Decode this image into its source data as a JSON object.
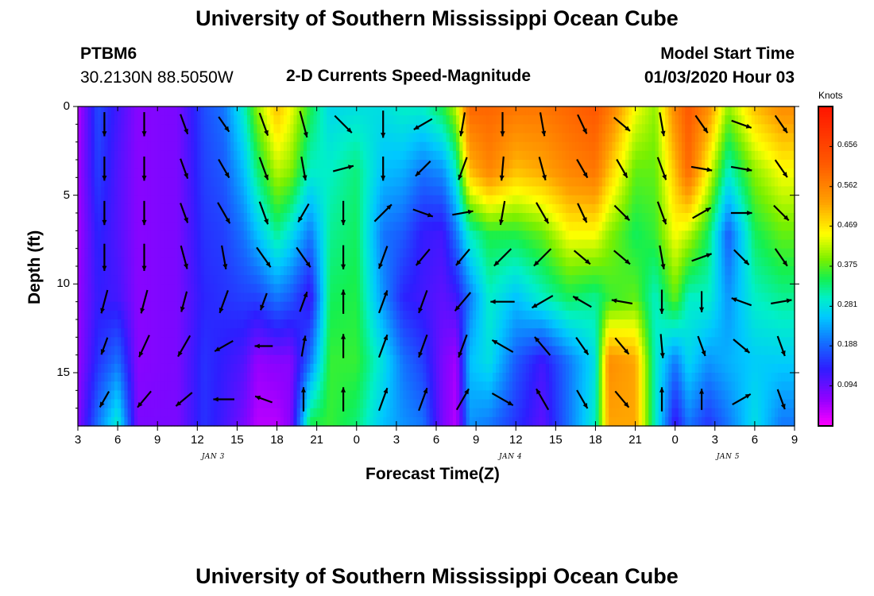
{
  "header": {
    "title": "University of Southern Mississippi Ocean Cube",
    "station_id": "PTBM6",
    "location": "30.2130N 88.5050W",
    "plot_title": "2-D Currents Speed-Magnitude",
    "model_start_label": "Model Start Time",
    "model_start_value": "01/03/2020 Hour 03"
  },
  "footer": {
    "title": "University of Southern Mississippi Ocean Cube"
  },
  "colorbar": {
    "unit_label": "Knots",
    "ticks": [
      "0.656",
      "0.562",
      "0.469",
      "0.375",
      "0.281",
      "0.188",
      "0.094"
    ],
    "tick_values": [
      0.656,
      0.562,
      0.469,
      0.375,
      0.281,
      0.188,
      0.094
    ],
    "range": [
      0.0,
      0.75
    ]
  },
  "chart_data": {
    "type": "heatmap",
    "title": "2-D Currents Speed-Magnitude",
    "xlabel": "Forecast Time(Z)",
    "ylabel": "Depth (ft)",
    "x_tick_labels": [
      "3",
      "6",
      "9",
      "12",
      "15",
      "18",
      "21",
      "0",
      "3",
      "6",
      "9",
      "12",
      "15",
      "18",
      "21",
      "0",
      "3",
      "6",
      "9"
    ],
    "x_range_hours": [
      0,
      54
    ],
    "date_labels": [
      {
        "text": "JAN 3",
        "hour": 10.2
      },
      {
        "text": "JAN 4",
        "hour": 32.6
      },
      {
        "text": "JAN 5",
        "hour": 49.0
      }
    ],
    "y_tick_labels": [
      "0",
      "5",
      "10",
      "15"
    ],
    "ylim": [
      0,
      18
    ],
    "y_inverted": true,
    "value_unit": "knots",
    "speed_keyframes_surface_to_bottom": [
      {
        "hour": 0,
        "profile": [
          0.04,
          0.05,
          0.05,
          0.06,
          0.06,
          0.07
        ]
      },
      {
        "hour": 1.5,
        "profile": [
          0.17,
          0.16,
          0.14,
          0.13,
          0.15,
          0.2
        ]
      },
      {
        "hour": 3,
        "profile": [
          0.12,
          0.11,
          0.11,
          0.12,
          0.2,
          0.3
        ]
      },
      {
        "hour": 4.5,
        "profile": [
          0.07,
          0.07,
          0.07,
          0.07,
          0.07,
          0.08
        ]
      },
      {
        "hour": 7.5,
        "profile": [
          0.08,
          0.08,
          0.08,
          0.08,
          0.08,
          0.08
        ]
      },
      {
        "hour": 9.5,
        "profile": [
          0.17,
          0.16,
          0.15,
          0.14,
          0.15,
          0.15
        ]
      },
      {
        "hour": 11,
        "profile": [
          0.2,
          0.18,
          0.16,
          0.15,
          0.13,
          0.12
        ]
      },
      {
        "hour": 12.5,
        "profile": [
          0.3,
          0.25,
          0.2,
          0.16,
          0.11,
          0.08
        ]
      },
      {
        "hour": 13.5,
        "profile": [
          0.4,
          0.33,
          0.25,
          0.16,
          0.06,
          0.04
        ]
      },
      {
        "hour": 15,
        "profile": [
          0.5,
          0.42,
          0.32,
          0.2,
          0.07,
          0.04
        ]
      },
      {
        "hour": 16,
        "profile": [
          0.45,
          0.4,
          0.28,
          0.18,
          0.07,
          0.07
        ]
      },
      {
        "hour": 17.5,
        "profile": [
          0.35,
          0.3,
          0.2,
          0.12,
          0.2,
          0.35
        ]
      },
      {
        "hour": 19,
        "profile": [
          0.27,
          0.3,
          0.32,
          0.34,
          0.36,
          0.36
        ]
      },
      {
        "hour": 21,
        "profile": [
          0.28,
          0.33,
          0.34,
          0.35,
          0.36,
          0.33
        ]
      },
      {
        "hour": 23,
        "profile": [
          0.28,
          0.25,
          0.2,
          0.22,
          0.28,
          0.25
        ]
      },
      {
        "hour": 24.5,
        "profile": [
          0.3,
          0.24,
          0.18,
          0.14,
          0.2,
          0.22
        ]
      },
      {
        "hour": 26,
        "profile": [
          0.3,
          0.2,
          0.13,
          0.12,
          0.16,
          0.2
        ]
      },
      {
        "hour": 27.5,
        "profile": [
          0.35,
          0.22,
          0.12,
          0.1,
          0.08,
          0.08
        ]
      },
      {
        "hour": 28.5,
        "profile": [
          0.42,
          0.3,
          0.2,
          0.12,
          0.05,
          0.04
        ]
      },
      {
        "hour": 29.5,
        "profile": [
          0.6,
          0.5,
          0.3,
          0.2,
          0.25,
          0.22
        ]
      },
      {
        "hour": 31,
        "profile": [
          0.6,
          0.56,
          0.35,
          0.3,
          0.28,
          0.2
        ]
      },
      {
        "hour": 33,
        "profile": [
          0.58,
          0.5,
          0.35,
          0.25,
          0.18,
          0.15
        ]
      },
      {
        "hour": 35,
        "profile": [
          0.58,
          0.52,
          0.38,
          0.3,
          0.12,
          0.1
        ]
      },
      {
        "hour": 37,
        "profile": [
          0.6,
          0.56,
          0.45,
          0.34,
          0.2,
          0.2
        ]
      },
      {
        "hour": 39,
        "profile": [
          0.62,
          0.58,
          0.45,
          0.32,
          0.28,
          0.3
        ]
      },
      {
        "hour": 40,
        "profile": [
          0.58,
          0.5,
          0.4,
          0.36,
          0.55,
          0.52
        ]
      },
      {
        "hour": 42,
        "profile": [
          0.45,
          0.38,
          0.34,
          0.38,
          0.52,
          0.52
        ]
      },
      {
        "hour": 43.5,
        "profile": [
          0.4,
          0.38,
          0.36,
          0.3,
          0.3,
          0.3
        ]
      },
      {
        "hour": 45,
        "profile": [
          0.56,
          0.5,
          0.45,
          0.38,
          0.2,
          0.12
        ]
      },
      {
        "hour": 46,
        "profile": [
          0.62,
          0.6,
          0.42,
          0.3,
          0.27,
          0.2
        ]
      },
      {
        "hour": 47.5,
        "profile": [
          0.55,
          0.45,
          0.34,
          0.3,
          0.22,
          0.15
        ]
      },
      {
        "hour": 49,
        "profile": [
          0.4,
          0.3,
          0.18,
          0.22,
          0.24,
          0.2
        ]
      },
      {
        "hour": 51,
        "profile": [
          0.5,
          0.4,
          0.34,
          0.3,
          0.26,
          0.28
        ]
      },
      {
        "hour": 53,
        "profile": [
          0.55,
          0.45,
          0.38,
          0.32,
          0.26,
          0.2
        ]
      },
      {
        "hour": 54,
        "profile": [
          0.55,
          0.45,
          0.38,
          0.32,
          0.26,
          0.2
        ]
      }
    ],
    "arrow_columns_hours": [
      3,
      6,
      9,
      12,
      15,
      18,
      21,
      24,
      27,
      30,
      33,
      36,
      39,
      42,
      45,
      48,
      51,
      54
    ],
    "arrow_depths_ft": [
      1,
      3.5,
      6,
      8.5,
      11,
      13.5,
      16.5
    ],
    "arrow_direction_deg_clockwise_from_north": [
      [
        180,
        180,
        180,
        180,
        195,
        200,
        210
      ],
      [
        180,
        180,
        180,
        180,
        195,
        205,
        220
      ],
      [
        160,
        160,
        160,
        165,
        195,
        210,
        230
      ],
      [
        145,
        150,
        150,
        170,
        200,
        240,
        270
      ],
      [
        160,
        160,
        160,
        145,
        200,
        270,
        290
      ],
      [
        165,
        170,
        210,
        145,
        20,
        10,
        0
      ],
      [
        135,
        75,
        180,
        180,
        0,
        0,
        0
      ],
      [
        180,
        180,
        45,
        200,
        20,
        20,
        20
      ],
      [
        240,
        225,
        110,
        220,
        200,
        200,
        20
      ],
      [
        190,
        200,
        80,
        220,
        220,
        200,
        30
      ],
      [
        180,
        185,
        190,
        225,
        270,
        300,
        120
      ],
      [
        170,
        165,
        150,
        225,
        240,
        320,
        330
      ],
      [
        155,
        150,
        155,
        130,
        300,
        145,
        150
      ],
      [
        130,
        150,
        135,
        130,
        280,
        140,
        140
      ],
      [
        170,
        160,
        160,
        170,
        180,
        175,
        0
      ],
      [
        145,
        100,
        60,
        70,
        180,
        160,
        0
      ],
      [
        110,
        100,
        90,
        135,
        290,
        130,
        60
      ],
      [
        145,
        145,
        135,
        145,
        80,
        160,
        160
      ]
    ],
    "arrow_relative_length": [
      [
        0.8,
        0.8,
        0.8,
        0.9,
        0.8,
        0.6,
        0.6
      ],
      [
        0.8,
        0.8,
        0.8,
        0.9,
        0.8,
        0.8,
        0.7
      ],
      [
        0.7,
        0.7,
        0.7,
        0.8,
        0.7,
        0.8,
        0.7
      ],
      [
        0.6,
        0.7,
        0.8,
        0.8,
        0.8,
        0.7,
        0.7
      ],
      [
        0.8,
        0.8,
        0.8,
        0.8,
        0.6,
        0.6,
        0.6
      ],
      [
        0.9,
        0.8,
        0.7,
        0.8,
        0.7,
        0.7,
        0.8
      ],
      [
        0.8,
        0.7,
        0.8,
        0.8,
        0.8,
        0.8,
        0.8
      ],
      [
        0.9,
        0.8,
        0.8,
        0.8,
        0.8,
        0.8,
        0.8
      ],
      [
        0.7,
        0.7,
        0.7,
        0.7,
        0.8,
        0.8,
        0.8
      ],
      [
        0.8,
        0.8,
        0.7,
        0.7,
        0.8,
        0.8,
        0.8
      ],
      [
        0.8,
        0.8,
        0.8,
        0.8,
        0.8,
        0.8,
        0.8
      ],
      [
        0.8,
        0.8,
        0.8,
        0.8,
        0.8,
        0.8,
        0.8
      ],
      [
        0.7,
        0.7,
        0.7,
        0.7,
        0.7,
        0.7,
        0.7
      ],
      [
        0.7,
        0.7,
        0.7,
        0.7,
        0.7,
        0.7,
        0.7
      ],
      [
        0.8,
        0.8,
        0.8,
        0.8,
        0.8,
        0.8,
        0.8
      ],
      [
        0.7,
        0.7,
        0.7,
        0.7,
        0.7,
        0.7,
        0.7
      ],
      [
        0.7,
        0.7,
        0.7,
        0.7,
        0.7,
        0.7,
        0.7
      ],
      [
        0.7,
        0.7,
        0.7,
        0.7,
        0.7,
        0.7,
        0.7
      ]
    ]
  }
}
